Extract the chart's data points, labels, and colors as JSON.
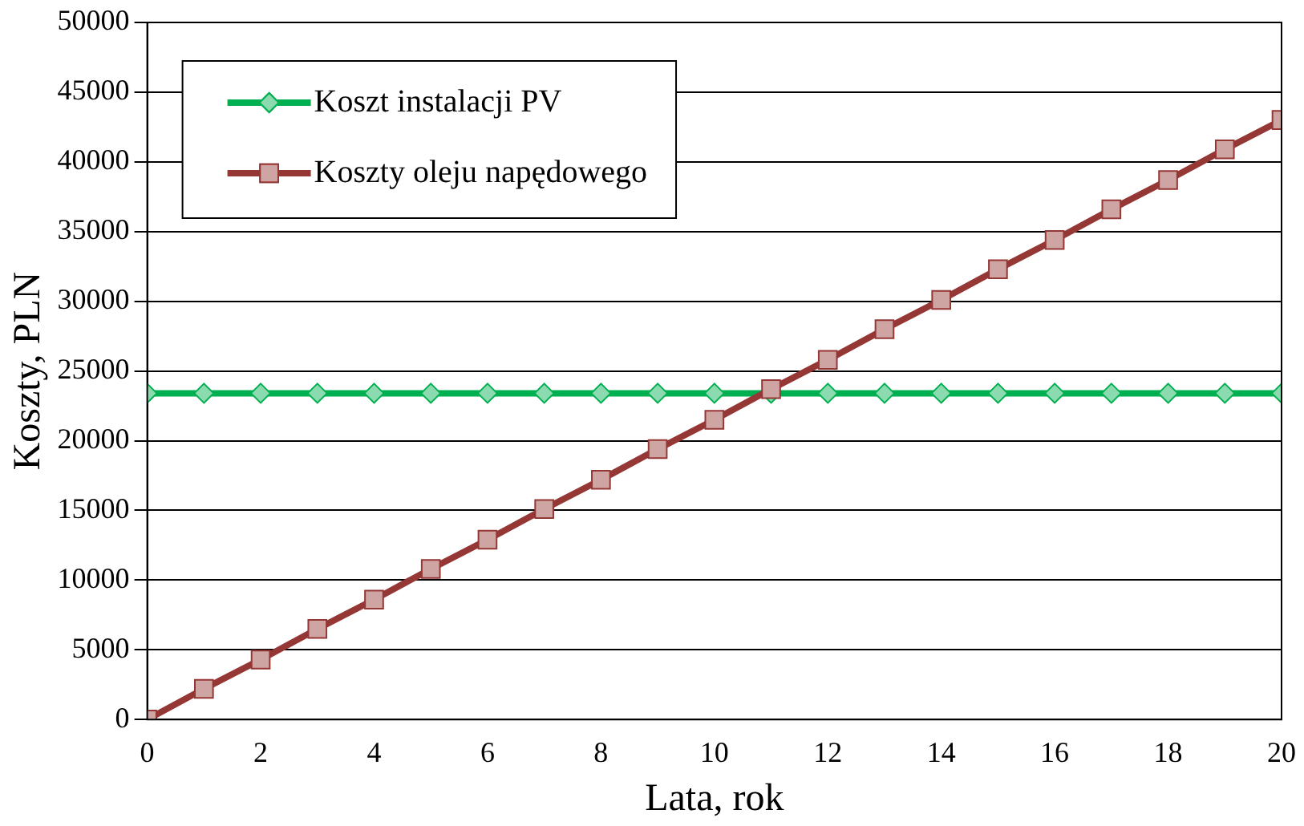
{
  "chart_data": {
    "type": "line",
    "xlabel": "Lata, rok",
    "ylabel": "Koszty, PLN",
    "x": [
      0,
      1,
      2,
      3,
      4,
      5,
      6,
      7,
      8,
      9,
      10,
      11,
      12,
      13,
      14,
      15,
      16,
      17,
      18,
      19,
      20
    ],
    "xlim": [
      0,
      20
    ],
    "xticks": [
      0,
      2,
      4,
      6,
      8,
      10,
      12,
      14,
      16,
      18,
      20
    ],
    "ylim": [
      0,
      50000
    ],
    "yticks": [
      0,
      5000,
      10000,
      15000,
      20000,
      25000,
      30000,
      35000,
      40000,
      45000,
      50000
    ],
    "grid": "y",
    "legend": "top left",
    "series": [
      {
        "name": "Koszt instalacji PV",
        "color": "#00b050",
        "marker": "diamond",
        "values": [
          23400,
          23400,
          23400,
          23400,
          23400,
          23400,
          23400,
          23400,
          23400,
          23400,
          23400,
          23400,
          23400,
          23400,
          23400,
          23400,
          23400,
          23400,
          23400,
          23400,
          23400
        ]
      },
      {
        "name": "Koszty oleju napędowego",
        "color": "#953735",
        "marker": "square",
        "values": [
          0,
          2200,
          4300,
          6500,
          8600,
          10800,
          12900,
          15100,
          17200,
          19400,
          21500,
          23700,
          25800,
          28000,
          30100,
          32300,
          34400,
          36600,
          38700,
          40900,
          43000
        ]
      }
    ]
  }
}
